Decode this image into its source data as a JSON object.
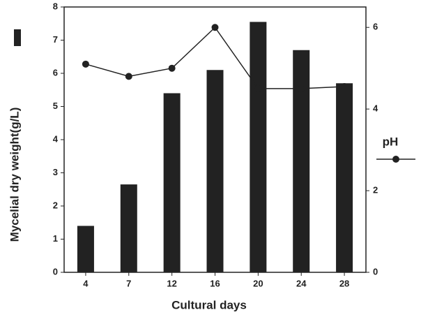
{
  "chart_data": {
    "type": "bar-line",
    "x_label": "Cultural days",
    "y_label": "Mycelial dry weight(g/L)",
    "categories": [
      "4",
      "7",
      "12",
      "16",
      "20",
      "24",
      "28"
    ],
    "series": [
      {
        "type": "bar",
        "color": "#222222",
        "values": [
          1.4,
          2.65,
          5.4,
          6.1,
          7.55,
          6.7,
          5.7
        ]
      },
      {
        "type": "line",
        "name": "pH",
        "axis": "y2",
        "color": "#222222",
        "values": [
          5.1,
          4.8,
          5.0,
          6.0,
          4.5,
          4.5,
          4.55
        ]
      }
    ],
    "ylim": [
      0,
      8
    ],
    "yticks": [
      0,
      1,
      2,
      3,
      4,
      5,
      6,
      7,
      8
    ],
    "y2lim": [
      0,
      6.5
    ],
    "y2ticks": [
      0,
      2,
      4,
      6
    ]
  }
}
